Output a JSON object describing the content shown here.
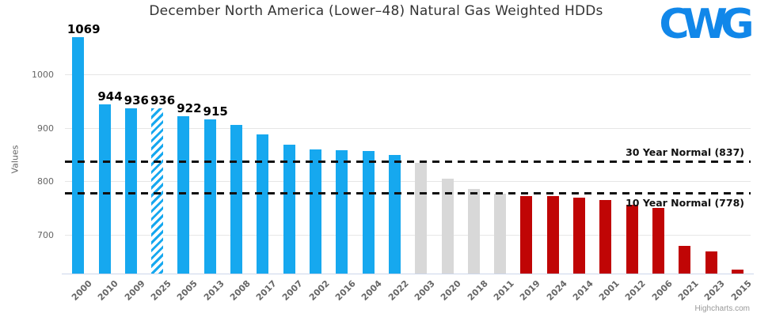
{
  "logo": {
    "text": "CWG",
    "color": "#1187E9"
  },
  "credit": "Highcharts.com",
  "chart_data": {
    "type": "bar",
    "title": "December North America (Lower–48) Natural Gas Weighted HDDs",
    "xlabel": "",
    "ylabel": "Values",
    "ylim": [
      628,
      1072
    ],
    "yticks": [
      700,
      800,
      900,
      1000
    ],
    "grid": true,
    "legend": false,
    "categories": [
      "2000",
      "2010",
      "2009",
      "2025",
      "2005",
      "2013",
      "2008",
      "2017",
      "2007",
      "2002",
      "2016",
      "2004",
      "2022",
      "2003",
      "2020",
      "2018",
      "2011",
      "2019",
      "2024",
      "2014",
      "2001",
      "2012",
      "2006",
      "2021",
      "2023",
      "2015"
    ],
    "values": [
      1069,
      944,
      936,
      936,
      922,
      915,
      905,
      888,
      869,
      860,
      858,
      856,
      850,
      835,
      805,
      786,
      777,
      772,
      772,
      770,
      765,
      757,
      751,
      680,
      670,
      635
    ],
    "data_labels": [
      "1069",
      "944",
      "936",
      "936",
      "922",
      "915",
      "",
      "",
      "",
      "",
      "",
      "",
      "",
      "",
      "",
      "",
      "",
      "",
      "",
      "",
      "",
      "",
      "",
      "",
      "",
      ""
    ],
    "bar_styles": [
      "blue",
      "blue",
      "blue",
      "blue-hatched",
      "blue",
      "blue",
      "blue",
      "blue",
      "blue",
      "blue",
      "blue",
      "blue",
      "blue",
      "gray",
      "gray",
      "gray",
      "gray",
      "red",
      "red",
      "red",
      "red",
      "red",
      "red",
      "red",
      "red",
      "red"
    ],
    "plot_lines": [
      {
        "value": 837,
        "label": "30 Year Normal (837)",
        "label_position": "above"
      },
      {
        "value": 778,
        "label": "10 Year Normal (778)",
        "label_position": "below"
      }
    ],
    "colors": {
      "blue": "#16A8EF",
      "gray": "#D8D8D8",
      "red": "#C00505",
      "plot_line": "#111111",
      "grid": "#E6E6E6",
      "axis_line": "#CCD6EB",
      "tick_text": "#666666",
      "title_text": "#333333"
    }
  }
}
